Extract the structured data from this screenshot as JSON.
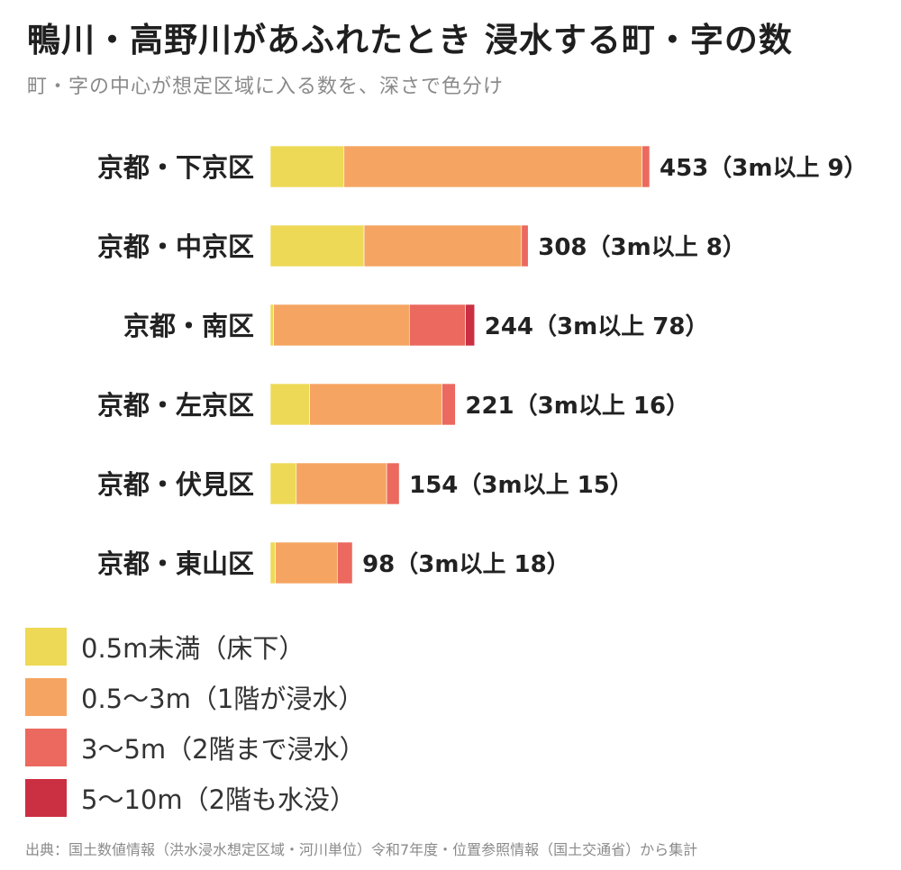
{
  "title": "鴨川・高野川があふれたとき 浸水する町・字の数",
  "subtitle": "町・字の中心が想定区域に入る数を、深さで色分け",
  "source": "出典：国土数値情報（洪水浸水想定区域・河川単位）令和7年度・位置参照情報（国土交通省）から集計",
  "colors": {
    "lt05": "#EDD955",
    "m05to3": "#F5A561",
    "m3to5": "#EB695E",
    "m5to10": "#CB2F42"
  },
  "legend": [
    {
      "label": "0.5m未満（床下）",
      "color_key": "lt05"
    },
    {
      "label": "0.5〜3m（1階が浸水）",
      "color_key": "m05to3"
    },
    {
      "label": "3〜5m（2階まで浸水）",
      "color_key": "m3to5"
    },
    {
      "label": "5〜10m（2階も水没）",
      "color_key": "m5to10"
    }
  ],
  "chart_data": {
    "type": "bar",
    "orientation": "horizontal",
    "stacked": true,
    "categories": [
      "京都・下京区",
      "京都・中京区",
      "京都・南区",
      "京都・左京区",
      "京都・伏見区",
      "京都・東山区"
    ],
    "series": [
      {
        "name": "0.5m未満（床下）",
        "color_key": "lt05",
        "values": [
          88,
          112,
          4,
          47,
          31,
          6
        ]
      },
      {
        "name": "0.5〜3m（1階が浸水）",
        "color_key": "m05to3",
        "values": [
          356,
          188,
          162,
          158,
          108,
          74
        ]
      },
      {
        "name": "3〜5m（2階まで浸水）",
        "color_key": "m3to5",
        "values": [
          9,
          8,
          67,
          16,
          15,
          18
        ]
      },
      {
        "name": "5〜10m（2階も水没）",
        "color_key": "m5to10",
        "values": [
          0,
          0,
          11,
          0,
          0,
          0
        ]
      }
    ],
    "totals": [
      453,
      308,
      244,
      221,
      154,
      98
    ],
    "over3m": [
      9,
      8,
      78,
      16,
      15,
      18
    ],
    "value_labels": [
      "453（3m以上 9）",
      "308（3m以上 8）",
      "244（3m以上 78）",
      "221（3m以上 16）",
      "154（3m以上 15）",
      "98（3m以上 18）"
    ],
    "xlim": [
      0,
      453
    ],
    "grid": false,
    "axes_visible": false,
    "legend_placement": "bottom-left"
  }
}
